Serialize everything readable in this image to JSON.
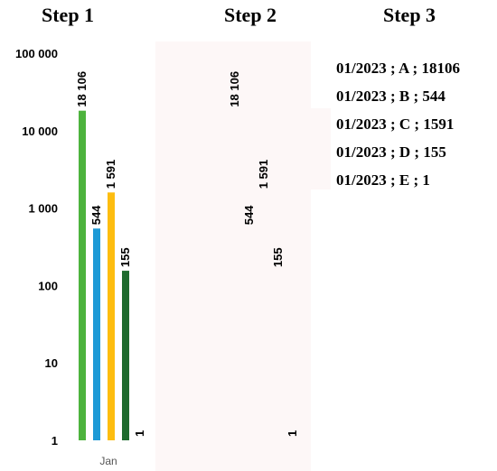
{
  "titles": {
    "step1": "Step 1",
    "step2": "Step 2",
    "step3": "Step 3"
  },
  "colors": {
    "A": "#4db33d",
    "B": "#1e9ad6",
    "C": "#fdbd10",
    "D": "#1e6b2e",
    "E": "#7fb0e0"
  },
  "chart_data": {
    "type": "bar",
    "title": "",
    "xlabel": "",
    "ylabel": "",
    "yscale": "log",
    "ylim": [
      1,
      100000
    ],
    "yticks": [
      1,
      10,
      100,
      1000,
      10000,
      100000
    ],
    "ytick_labels": [
      "1",
      "10",
      "100",
      "1 000",
      "10 000",
      "100 000"
    ],
    "categories": [
      "Jan"
    ],
    "legend": "none",
    "grid": false,
    "series": [
      {
        "key": "A",
        "values": [
          18106
        ],
        "label": "18 106"
      },
      {
        "key": "B",
        "values": [
          544
        ],
        "label": "544"
      },
      {
        "key": "C",
        "values": [
          1591
        ],
        "label": "1 591"
      },
      {
        "key": "D",
        "values": [
          155
        ],
        "label": "155"
      },
      {
        "key": "E",
        "values": [
          1
        ],
        "label": "1"
      }
    ]
  },
  "step3_lines": [
    "01/2023 ; A ; 18106",
    "01/2023 ; B ; 544",
    "01/2023 ; C ; 1591",
    "01/2023 ; D ; 155",
    "01/2023 ; E ; 1"
  ]
}
